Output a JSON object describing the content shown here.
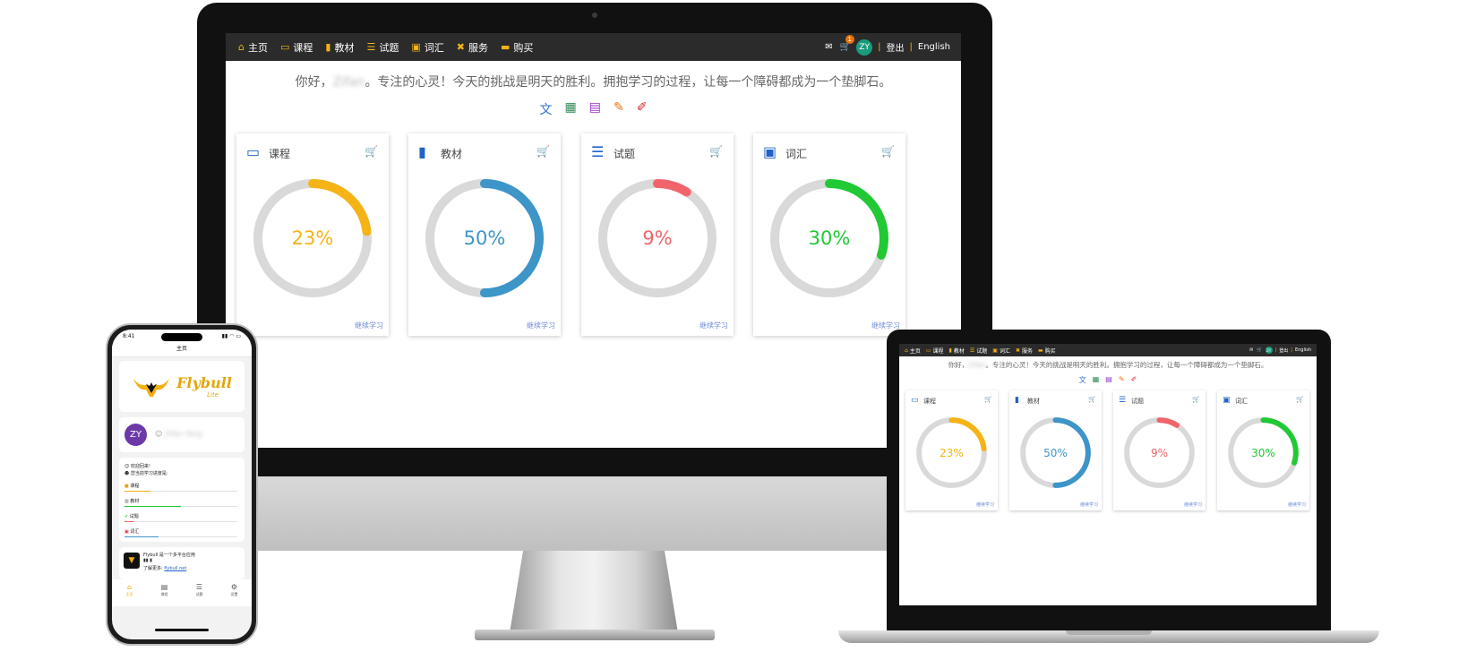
{
  "nav": {
    "items": [
      {
        "icon": "home-icon",
        "glyph": "⌂",
        "label": "主页"
      },
      {
        "icon": "monitor-icon",
        "glyph": "▭",
        "label": "课程"
      },
      {
        "icon": "book-icon",
        "glyph": "▮",
        "label": "教材"
      },
      {
        "icon": "checklist-icon",
        "glyph": "☰",
        "label": "试题"
      },
      {
        "icon": "ab-icon",
        "glyph": "▣",
        "label": "词汇"
      },
      {
        "icon": "tools-icon",
        "glyph": "✖",
        "label": "服务"
      },
      {
        "icon": "ticket-icon",
        "glyph": "▬",
        "label": "购买"
      }
    ],
    "cart_badge": "1",
    "user_initials": "ZY",
    "logout": "登出",
    "language": "English",
    "separator": "|"
  },
  "greeting": {
    "prefix": "你好，",
    "name": "Zifan",
    "suffix": "。专注的心灵！今天的挑战是明天的胜利。拥抱学习的过程，让每一个障碍都成为一个垫脚石。"
  },
  "tools": [
    {
      "icon": "translate-icon",
      "glyph": "文",
      "color": "#2f6fd6"
    },
    {
      "icon": "spreadsheet-icon",
      "glyph": "▦",
      "color": "#2e8b57"
    },
    {
      "icon": "document-icon",
      "glyph": "▤",
      "color": "#9b35c9"
    },
    {
      "icon": "writing-icon",
      "glyph": "✎",
      "color": "#e8730d"
    },
    {
      "icon": "paint-bucket-icon",
      "glyph": "✐",
      "color": "#d62828"
    }
  ],
  "cards": [
    {
      "key": "course",
      "title": "课程",
      "icon": "monitor-icon",
      "glyph": "▭",
      "percent": 23,
      "label": "23%",
      "color": "#f5b316",
      "link": "继续学习"
    },
    {
      "key": "textbook",
      "title": "教材",
      "icon": "book-icon",
      "glyph": "▮",
      "percent": 50,
      "label": "50%",
      "color": "#3d95c8",
      "link": "继续学习"
    },
    {
      "key": "quiz",
      "title": "试题",
      "icon": "checklist-icon",
      "glyph": "☰",
      "percent": 9,
      "label": "9%",
      "color": "#f0656a",
      "link": "继续学习"
    },
    {
      "key": "vocab",
      "title": "词汇",
      "icon": "ab-icon",
      "glyph": "▣",
      "percent": 30,
      "label": "30%",
      "color": "#21c934",
      "link": "继续学习"
    }
  ],
  "phone": {
    "time": "8:41",
    "status_icons": "▮▮ ◠ ▭",
    "page_title": "主页",
    "logo_text": "Flybull",
    "logo_sub": "Lite",
    "avatar": "ZY",
    "username": "Zifan Yang",
    "welcome": "欢迎回来!",
    "progress_intro": "您当前学习进度是:",
    "progress": [
      {
        "icon": "course-icon",
        "glyph": "■",
        "glyph_color": "#e8a10c",
        "label": "课程",
        "percent": 23,
        "color": "#f5b316"
      },
      {
        "icon": "book-icon",
        "glyph": "▥",
        "glyph_color": "#555555",
        "label": "教材",
        "percent": 50,
        "color": "#21c934"
      },
      {
        "icon": "check-icon",
        "glyph": "✔",
        "glyph_color": "#21c934",
        "label": "试题",
        "percent": 9,
        "color": "#f0656a"
      },
      {
        "icon": "ab-icon",
        "glyph": "▣",
        "glyph_color": "#d62828",
        "label": "词汇",
        "percent": 30,
        "color": "#3d95c8"
      }
    ],
    "about_line1": "Flybull 是一个多平台应用",
    "about_line3": "了解更多:",
    "about_link": "flybull.net",
    "tabs": [
      {
        "icon": "home-icon",
        "glyph": "⌂",
        "label": "主页"
      },
      {
        "icon": "chart-icon",
        "glyph": "▤",
        "label": "课程"
      },
      {
        "icon": "list-icon",
        "glyph": "☰",
        "label": "试题"
      },
      {
        "icon": "gear-icon",
        "glyph": "⚙",
        "label": "设置"
      }
    ]
  }
}
